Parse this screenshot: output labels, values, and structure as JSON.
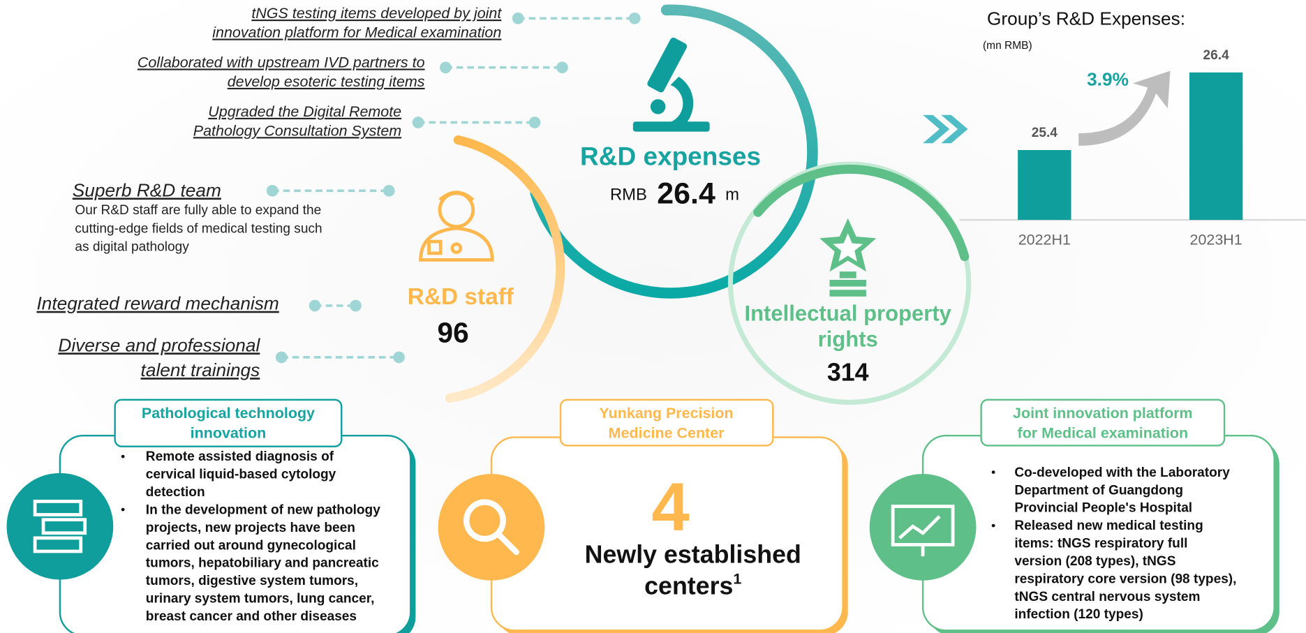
{
  "left_items": [
    {
      "lines": [
        "tNGS testing items developed by joint",
        "innovation platform for Medical examination"
      ]
    },
    {
      "lines": [
        "Collaborated with upstream IVD partners to",
        "develop esoteric testing items"
      ]
    },
    {
      "lines": [
        "Upgraded the Digital Remote",
        "Pathology Consultation System"
      ]
    },
    {
      "lines": [
        "Superb R&D team"
      ],
      "description": [
        "Our R&D staff are fully able to expand the",
        "cutting-edge fields of medical testing such",
        "as digital pathology"
      ]
    },
    {
      "lines": [
        "Integrated reward mechanism"
      ]
    },
    {
      "lines": [
        "Diverse and professional",
        "talent trainings"
      ]
    }
  ],
  "rd_expenses": {
    "title": "R&D expenses",
    "prefix": "RMB",
    "value": "26.4",
    "unit": "m"
  },
  "rd_staff": {
    "title": "R&D staff",
    "value": "96"
  },
  "ip_rights": {
    "title": [
      "Intellectual property",
      "rights"
    ],
    "value": "314"
  },
  "boxes": [
    {
      "title": [
        "Pathological technology",
        "innovation"
      ],
      "bullets": [
        [
          "Remote assisted diagnosis of",
          "cervical liquid-based cytology",
          "detection"
        ],
        [
          "In the development of new pathology",
          "projects, new projects have been",
          "carried out around gynecological",
          "tumors, hepatobiliary and pancreatic",
          "tumors, digestive system tumors,",
          "urinary system tumors, lung cancer,",
          "breast cancer and other diseases"
        ]
      ]
    },
    {
      "title": [
        "Yunkang Precision",
        "Medicine Center"
      ],
      "number": "4",
      "caption": [
        "Newly established",
        "centers"
      ],
      "footnote": "1"
    },
    {
      "title": [
        "Joint innovation platform",
        "for Medical examination"
      ],
      "bullets": [
        [
          "Co-developed with the Laboratory",
          "Department of Guangdong",
          "Provincial People's Hospital"
        ],
        [
          "Released new medical testing",
          "items: tNGS respiratory full",
          "version (208 types), tNGS",
          "respiratory core version (98 types),",
          "tNGS central nervous system",
          "infection (120 types)"
        ]
      ]
    }
  ],
  "chart_data": {
    "type": "bar",
    "title": "Group’s R&D Expenses:",
    "unit_label": "(mn RMB)",
    "categories": [
      "2022H1",
      "2023H1"
    ],
    "values": [
      25.4,
      26.4
    ],
    "color": "#0f9e9b",
    "ylim": [
      24.5,
      27
    ],
    "growth_label": "3.9%"
  }
}
